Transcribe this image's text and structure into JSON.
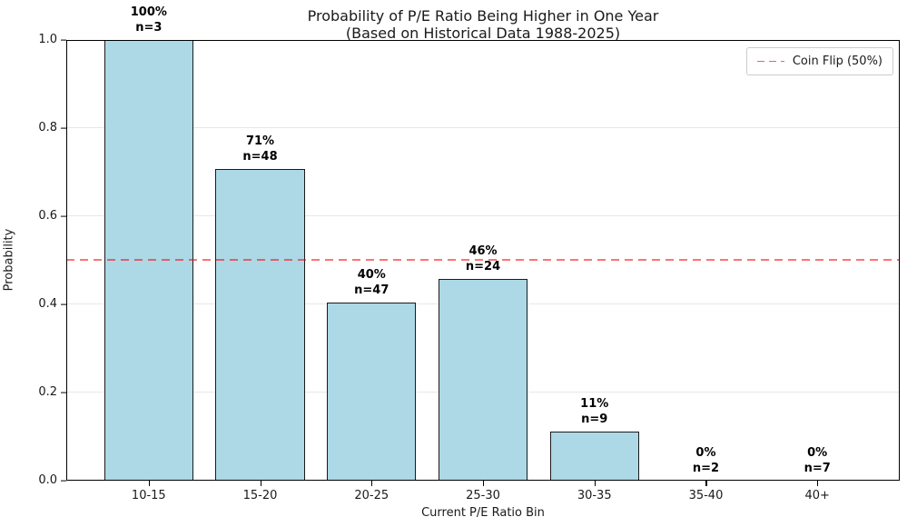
{
  "chart_data": {
    "type": "bar",
    "title": "Probability of P/E Ratio Being Higher in One Year",
    "subtitle": "(Based on Historical Data 1988-2025)",
    "xlabel": "Current P/E Ratio Bin",
    "ylabel": "Probability",
    "categories": [
      "10-15",
      "15-20",
      "20-25",
      "25-30",
      "30-35",
      "35-40",
      "40+"
    ],
    "values": [
      1.0,
      0.708,
      0.404,
      0.458,
      0.111,
      0.0,
      0.0
    ],
    "bar_labels": [
      [
        "100%",
        "n=3"
      ],
      [
        "71%",
        "n=48"
      ],
      [
        "40%",
        "n=47"
      ],
      [
        "46%",
        "n=24"
      ],
      [
        "11%",
        "n=9"
      ],
      [
        "0%",
        "n=2"
      ],
      [
        "0%",
        "n=7"
      ]
    ],
    "sample_sizes": [
      3,
      48,
      47,
      24,
      9,
      2,
      7
    ],
    "ylim": [
      0.0,
      1.0
    ],
    "ytick_labels": [
      "0.0",
      "0.2",
      "0.4",
      "0.6",
      "0.8",
      "1.0"
    ],
    "grid": "horizontal",
    "bar_color": "#add8e6",
    "bar_edge_color": "#1a1a1a",
    "reference_line": {
      "value": 0.5,
      "color": "#ff6666",
      "style": "dashed"
    },
    "legend": {
      "label": "Coin Flip (50%)",
      "position": "upper right"
    }
  }
}
